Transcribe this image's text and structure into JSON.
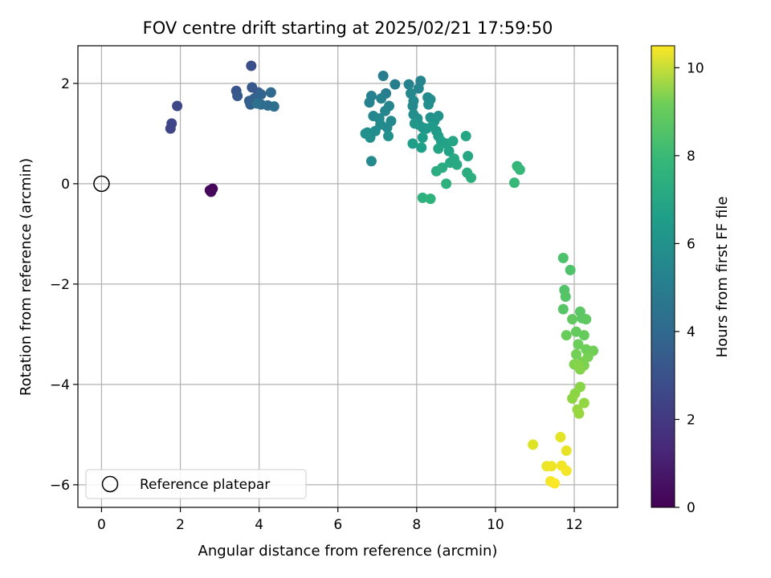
{
  "chart_data": {
    "type": "scatter",
    "title": "FOV centre drift starting at 2025/02/21 17:59:50",
    "xlabel": "Angular distance from reference (arcmin)",
    "ylabel": "Rotation from reference (arcmin)",
    "xlim": [
      -0.6,
      13.1
    ],
    "ylim": [
      -6.45,
      2.75
    ],
    "xticks": [
      0,
      2,
      4,
      6,
      8,
      10,
      12
    ],
    "yticks": [
      -6,
      -4,
      -2,
      0,
      2
    ],
    "xtick_labels": [
      "0",
      "2",
      "4",
      "6",
      "8",
      "10",
      "12"
    ],
    "ytick_labels": [
      "−6",
      "−4",
      "−2",
      "0",
      "2"
    ],
    "grid": true,
    "legend": {
      "position": "lower-left",
      "label": "Reference platepar"
    },
    "reference_point": {
      "x": 0,
      "y": 0
    },
    "colorbar": {
      "label": "Hours from first FF file",
      "colormap": "viridis",
      "range": [
        0,
        10.5
      ],
      "ticks": [
        0,
        2,
        4,
        6,
        8,
        10
      ],
      "tick_labels": [
        "0",
        "2",
        "4",
        "6",
        "8",
        "10"
      ]
    },
    "series": [
      {
        "points": [
          {
            "x": 2.75,
            "y": -0.13,
            "c": 0.1
          },
          {
            "x": 2.82,
            "y": -0.1,
            "c": 0.15
          },
          {
            "x": 2.78,
            "y": -0.16,
            "c": 0.2
          },
          {
            "x": 1.75,
            "y": 1.1,
            "c": 2.2
          },
          {
            "x": 1.78,
            "y": 1.2,
            "c": 2.25
          },
          {
            "x": 1.92,
            "y": 1.55,
            "c": 2.3
          },
          {
            "x": 3.8,
            "y": 2.35,
            "c": 2.6
          },
          {
            "x": 3.42,
            "y": 1.85,
            "c": 2.8
          },
          {
            "x": 3.45,
            "y": 1.75,
            "c": 2.85
          },
          {
            "x": 3.82,
            "y": 1.92,
            "c": 2.9
          },
          {
            "x": 3.98,
            "y": 1.82,
            "c": 3.0
          },
          {
            "x": 3.75,
            "y": 1.65,
            "c": 3.1
          },
          {
            "x": 3.78,
            "y": 1.58,
            "c": 3.2
          },
          {
            "x": 3.88,
            "y": 1.7,
            "c": 3.3
          },
          {
            "x": 4.05,
            "y": 1.78,
            "c": 3.4
          },
          {
            "x": 4.05,
            "y": 1.58,
            "c": 3.5
          },
          {
            "x": 4.3,
            "y": 1.82,
            "c": 3.6
          },
          {
            "x": 4.22,
            "y": 1.56,
            "c": 3.7
          },
          {
            "x": 4.38,
            "y": 1.54,
            "c": 3.8
          },
          {
            "x": 3.95,
            "y": 1.6,
            "c": 3.9
          },
          {
            "x": 7.15,
            "y": 2.15,
            "c": 4.4
          },
          {
            "x": 7.22,
            "y": 1.8,
            "c": 4.5
          },
          {
            "x": 7.45,
            "y": 1.98,
            "c": 4.55
          },
          {
            "x": 6.85,
            "y": 1.75,
            "c": 4.6
          },
          {
            "x": 6.8,
            "y": 1.62,
            "c": 4.65
          },
          {
            "x": 7.1,
            "y": 1.7,
            "c": 4.7
          },
          {
            "x": 7.3,
            "y": 1.55,
            "c": 4.75
          },
          {
            "x": 7.2,
            "y": 1.45,
            "c": 4.8
          },
          {
            "x": 6.9,
            "y": 1.35,
            "c": 4.85
          },
          {
            "x": 7.05,
            "y": 1.3,
            "c": 4.9
          },
          {
            "x": 7.35,
            "y": 1.25,
            "c": 4.95
          },
          {
            "x": 7.25,
            "y": 1.12,
            "c": 5.0
          },
          {
            "x": 7.08,
            "y": 1.18,
            "c": 5.05
          },
          {
            "x": 6.95,
            "y": 1.05,
            "c": 5.1
          },
          {
            "x": 6.75,
            "y": 1.02,
            "c": 5.15
          },
          {
            "x": 6.82,
            "y": 0.92,
            "c": 5.2
          },
          {
            "x": 6.7,
            "y": 1.0,
            "c": 5.25
          },
          {
            "x": 7.28,
            "y": 0.95,
            "c": 5.3
          },
          {
            "x": 6.85,
            "y": 0.45,
            "c": 5.0
          },
          {
            "x": 7.8,
            "y": 1.98,
            "c": 4.7
          },
          {
            "x": 8.1,
            "y": 2.05,
            "c": 4.75
          },
          {
            "x": 8.05,
            "y": 1.9,
            "c": 4.8
          },
          {
            "x": 7.85,
            "y": 1.8,
            "c": 4.9
          },
          {
            "x": 7.92,
            "y": 1.65,
            "c": 4.95
          },
          {
            "x": 7.9,
            "y": 1.55,
            "c": 5.0
          },
          {
            "x": 8.28,
            "y": 1.72,
            "c": 5.05
          },
          {
            "x": 8.35,
            "y": 1.68,
            "c": 5.1
          },
          {
            "x": 8.3,
            "y": 1.58,
            "c": 5.15
          },
          {
            "x": 7.92,
            "y": 1.38,
            "c": 5.2
          },
          {
            "x": 8.02,
            "y": 1.3,
            "c": 5.25
          },
          {
            "x": 8.35,
            "y": 1.32,
            "c": 5.3
          },
          {
            "x": 8.55,
            "y": 1.35,
            "c": 5.35
          },
          {
            "x": 8.45,
            "y": 1.25,
            "c": 5.4
          },
          {
            "x": 8.05,
            "y": 1.18,
            "c": 5.45
          },
          {
            "x": 8.15,
            "y": 1.12,
            "c": 5.5
          },
          {
            "x": 7.95,
            "y": 1.2,
            "c": 5.55
          },
          {
            "x": 8.25,
            "y": 1.1,
            "c": 5.6
          },
          {
            "x": 8.4,
            "y": 1.15,
            "c": 5.65
          },
          {
            "x": 8.5,
            "y": 1.05,
            "c": 5.7
          },
          {
            "x": 8.55,
            "y": 0.95,
            "c": 5.75
          },
          {
            "x": 8.15,
            "y": 0.92,
            "c": 5.8
          },
          {
            "x": 7.9,
            "y": 0.8,
            "c": 5.85
          },
          {
            "x": 8.12,
            "y": 0.72,
            "c": 5.9
          },
          {
            "x": 8.62,
            "y": 0.85,
            "c": 5.95
          },
          {
            "x": 8.75,
            "y": 0.8,
            "c": 6.0
          },
          {
            "x": 8.82,
            "y": 0.65,
            "c": 6.05
          },
          {
            "x": 8.55,
            "y": 0.7,
            "c": 6.1
          },
          {
            "x": 8.92,
            "y": 0.85,
            "c": 6.15
          },
          {
            "x": 9.25,
            "y": 0.95,
            "c": 6.2
          },
          {
            "x": 9.3,
            "y": 0.55,
            "c": 6.25
          },
          {
            "x": 8.95,
            "y": 0.5,
            "c": 6.3
          },
          {
            "x": 8.85,
            "y": 0.42,
            "c": 6.35
          },
          {
            "x": 9.02,
            "y": 0.38,
            "c": 6.4
          },
          {
            "x": 8.65,
            "y": 0.32,
            "c": 6.45
          },
          {
            "x": 8.5,
            "y": 0.25,
            "c": 6.5
          },
          {
            "x": 9.28,
            "y": 0.22,
            "c": 6.55
          },
          {
            "x": 9.38,
            "y": 0.12,
            "c": 6.6
          },
          {
            "x": 8.75,
            "y": 0.0,
            "c": 6.65
          },
          {
            "x": 8.15,
            "y": -0.28,
            "c": 6.7
          },
          {
            "x": 8.35,
            "y": -0.3,
            "c": 6.75
          },
          {
            "x": 10.55,
            "y": 0.35,
            "c": 6.9
          },
          {
            "x": 10.62,
            "y": 0.28,
            "c": 7.0
          },
          {
            "x": 10.48,
            "y": 0.02,
            "c": 7.05
          },
          {
            "x": 11.72,
            "y": -1.48,
            "c": 7.5
          },
          {
            "x": 11.9,
            "y": -1.72,
            "c": 7.55
          },
          {
            "x": 11.75,
            "y": -2.12,
            "c": 7.6
          },
          {
            "x": 11.78,
            "y": -2.25,
            "c": 7.65
          },
          {
            "x": 11.72,
            "y": -2.5,
            "c": 7.7
          },
          {
            "x": 12.15,
            "y": -2.55,
            "c": 7.75
          },
          {
            "x": 12.2,
            "y": -2.68,
            "c": 7.8
          },
          {
            "x": 12.3,
            "y": -2.7,
            "c": 7.85
          },
          {
            "x": 11.95,
            "y": -2.7,
            "c": 7.9
          },
          {
            "x": 12.05,
            "y": -2.95,
            "c": 7.95
          },
          {
            "x": 12.25,
            "y": -3.02,
            "c": 8.0
          },
          {
            "x": 11.8,
            "y": -3.02,
            "c": 8.05
          },
          {
            "x": 12.1,
            "y": -3.2,
            "c": 8.1
          },
          {
            "x": 12.3,
            "y": -3.3,
            "c": 8.15
          },
          {
            "x": 12.48,
            "y": -3.33,
            "c": 8.2
          },
          {
            "x": 12.05,
            "y": -3.4,
            "c": 8.25
          },
          {
            "x": 12.35,
            "y": -3.45,
            "c": 8.3
          },
          {
            "x": 12.2,
            "y": -3.55,
            "c": 8.35
          },
          {
            "x": 12.25,
            "y": -3.62,
            "c": 8.4
          },
          {
            "x": 12.0,
            "y": -3.6,
            "c": 8.45
          },
          {
            "x": 12.15,
            "y": -3.7,
            "c": 8.5
          },
          {
            "x": 12.1,
            "y": -3.62,
            "c": 8.55
          },
          {
            "x": 12.15,
            "y": -4.05,
            "c": 8.6
          },
          {
            "x": 12.02,
            "y": -4.18,
            "c": 8.65
          },
          {
            "x": 11.95,
            "y": -4.28,
            "c": 8.7
          },
          {
            "x": 12.25,
            "y": -4.37,
            "c": 8.75
          },
          {
            "x": 12.08,
            "y": -4.5,
            "c": 8.8
          },
          {
            "x": 12.12,
            "y": -4.58,
            "c": 8.85
          },
          {
            "x": 10.95,
            "y": -5.2,
            "c": 10.0
          },
          {
            "x": 11.65,
            "y": -5.05,
            "c": 10.1
          },
          {
            "x": 11.8,
            "y": -5.32,
            "c": 10.15
          },
          {
            "x": 11.3,
            "y": -5.63,
            "c": 10.2
          },
          {
            "x": 11.42,
            "y": -5.63,
            "c": 10.25
          },
          {
            "x": 11.68,
            "y": -5.62,
            "c": 10.3
          },
          {
            "x": 11.8,
            "y": -5.72,
            "c": 10.35
          },
          {
            "x": 11.4,
            "y": -5.93,
            "c": 10.4
          },
          {
            "x": 11.5,
            "y": -5.97,
            "c": 10.45
          }
        ]
      }
    ]
  }
}
